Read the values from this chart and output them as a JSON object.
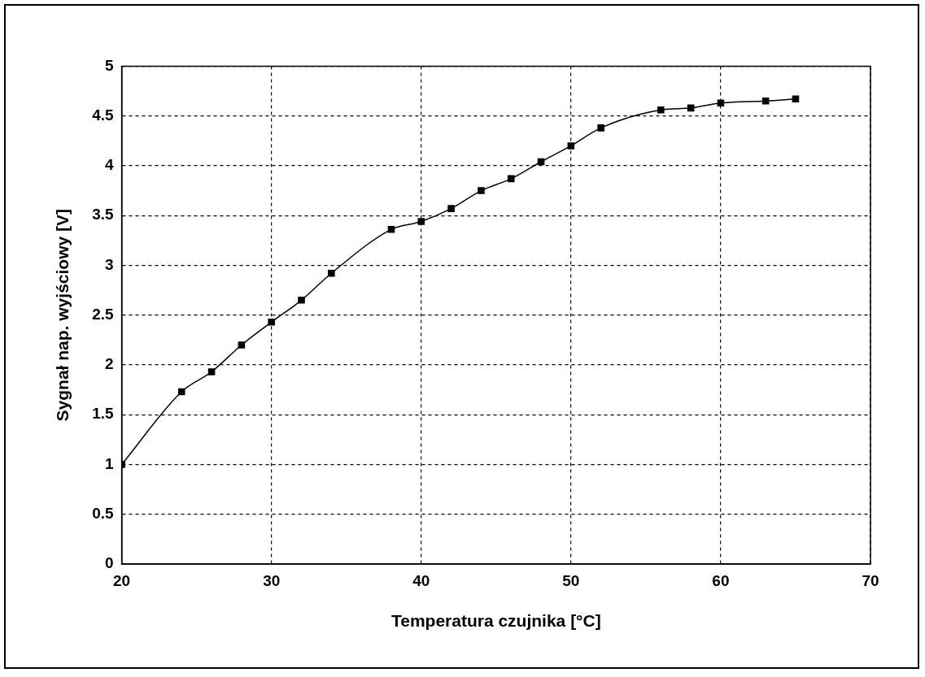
{
  "chart_data": {
    "type": "line",
    "xlabel": "Temperatura czujnika [°C]",
    "ylabel": "Sygnał nap. wyjściowy [V]",
    "x": [
      20,
      24,
      26,
      28,
      30,
      32,
      34,
      38,
      40,
      42,
      44,
      46,
      48,
      50,
      52,
      56,
      58,
      60,
      63,
      65
    ],
    "series": [
      {
        "color": "#000000",
        "values": [
          1.0,
          1.73,
          1.93,
          2.2,
          2.43,
          2.65,
          2.92,
          3.36,
          3.44,
          3.57,
          3.75,
          3.87,
          4.04,
          4.2,
          4.38,
          4.56,
          4.58,
          4.63,
          4.65,
          4.67
        ]
      }
    ],
    "xlim": [
      20,
      70
    ],
    "xticks": [
      20,
      30,
      40,
      50,
      60,
      70
    ],
    "ylim": [
      0,
      5
    ],
    "yticks": [
      0,
      0.5,
      1,
      1.5,
      2,
      2.5,
      3,
      3.5,
      4,
      4.5,
      5
    ],
    "grid": true,
    "legend": false,
    "marker": "square",
    "line_style": "solid"
  }
}
